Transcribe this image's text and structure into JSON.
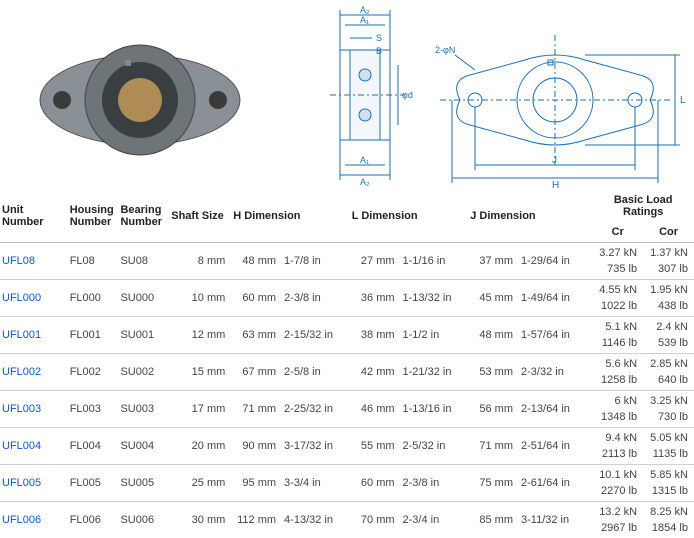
{
  "diagram": {
    "labels": [
      "A₂",
      "A₁",
      "S",
      "B",
      "φd",
      "A₁",
      "A₂",
      "2-φN",
      "L",
      "J",
      "H"
    ],
    "colors": {
      "flange": "#8a9196",
      "bore": "#b08d57",
      "line": "#1b6fb5"
    }
  },
  "headers": {
    "unit": "Unit Number",
    "housing": "Housing Number",
    "bearing": "Bearing Number",
    "shaft": "Shaft Size",
    "h": "H Dimension",
    "l": "L Dimension",
    "j": "J Dimension",
    "load": "Basic Load Ratings",
    "cr": "Cr",
    "cor": "Cor"
  },
  "rows": [
    {
      "unit": "UFL08",
      "housing": "FL08",
      "bearing": "SU08",
      "shaft": "8 mm",
      "h_mm": "48 mm",
      "h_in": "1-7/8 in",
      "l_mm": "27 mm",
      "l_in": "1-1/16 in",
      "j_mm": "37 mm",
      "j_in": "1-29/64 in",
      "cr1": "3.27 kN",
      "cor1": "1.37 kN",
      "cr2": "735 lb",
      "cor2": "307 lb"
    },
    {
      "unit": "UFL000",
      "housing": "FL000",
      "bearing": "SU000",
      "shaft": "10 mm",
      "h_mm": "60 mm",
      "h_in": "2-3/8 in",
      "l_mm": "36 mm",
      "l_in": "1-13/32 in",
      "j_mm": "45 mm",
      "j_in": "1-49/64 in",
      "cr1": "4.55 kN",
      "cor1": "1.95 kN",
      "cr2": "1022 lb",
      "cor2": "438 lb"
    },
    {
      "unit": "UFL001",
      "housing": "FL001",
      "bearing": "SU001",
      "shaft": "12 mm",
      "h_mm": "63 mm",
      "h_in": "2-15/32 in",
      "l_mm": "38 mm",
      "l_in": "1-1/2 in",
      "j_mm": "48 mm",
      "j_in": "1-57/64 in",
      "cr1": "5.1 kN",
      "cor1": "2.4 kN",
      "cr2": "1146 lb",
      "cor2": "539 lb"
    },
    {
      "unit": "UFL002",
      "housing": "FL002",
      "bearing": "SU002",
      "shaft": "15 mm",
      "h_mm": "67 mm",
      "h_in": "2-5/8 in",
      "l_mm": "42 mm",
      "l_in": "1-21/32 in",
      "j_mm": "53 mm",
      "j_in": "2-3/32 in",
      "cr1": "5.6 kN",
      "cor1": "2.85 kN",
      "cr2": "1258 lb",
      "cor2": "640 lb"
    },
    {
      "unit": "UFL003",
      "housing": "FL003",
      "bearing": "SU003",
      "shaft": "17 mm",
      "h_mm": "71 mm",
      "h_in": "2-25/32 in",
      "l_mm": "46 mm",
      "l_in": "1-13/16 in",
      "j_mm": "56 mm",
      "j_in": "2-13/64 in",
      "cr1": "6 kN",
      "cor1": "3.25 kN",
      "cr2": "1348 lb",
      "cor2": "730 lb"
    },
    {
      "unit": "UFL004",
      "housing": "FL004",
      "bearing": "SU004",
      "shaft": "20 mm",
      "h_mm": "90 mm",
      "h_in": "3-17/32 in",
      "l_mm": "55 mm",
      "l_in": "2-5/32 in",
      "j_mm": "71 mm",
      "j_in": "2-51/64 in",
      "cr1": "9.4 kN",
      "cor1": "5.05 kN",
      "cr2": "2113 lb",
      "cor2": "1135 lb"
    },
    {
      "unit": "UFL005",
      "housing": "FL005",
      "bearing": "SU005",
      "shaft": "25 mm",
      "h_mm": "95 mm",
      "h_in": "3-3/4 in",
      "l_mm": "60 mm",
      "l_in": "2-3/8 in",
      "j_mm": "75 mm",
      "j_in": "2-61/64 in",
      "cr1": "10.1 kN",
      "cor1": "5.85 kN",
      "cr2": "2270 lb",
      "cor2": "1315 lb"
    },
    {
      "unit": "UFL006",
      "housing": "FL006",
      "bearing": "SU006",
      "shaft": "30 mm",
      "h_mm": "112 mm",
      "h_in": "4-13/32 in",
      "l_mm": "70 mm",
      "l_in": "2-3/4 in",
      "j_mm": "85 mm",
      "j_in": "3-11/32 in",
      "cr1": "13.2 kN",
      "cor1": "8.25 kN",
      "cr2": "2967 lb",
      "cor2": "1854 lb"
    }
  ]
}
